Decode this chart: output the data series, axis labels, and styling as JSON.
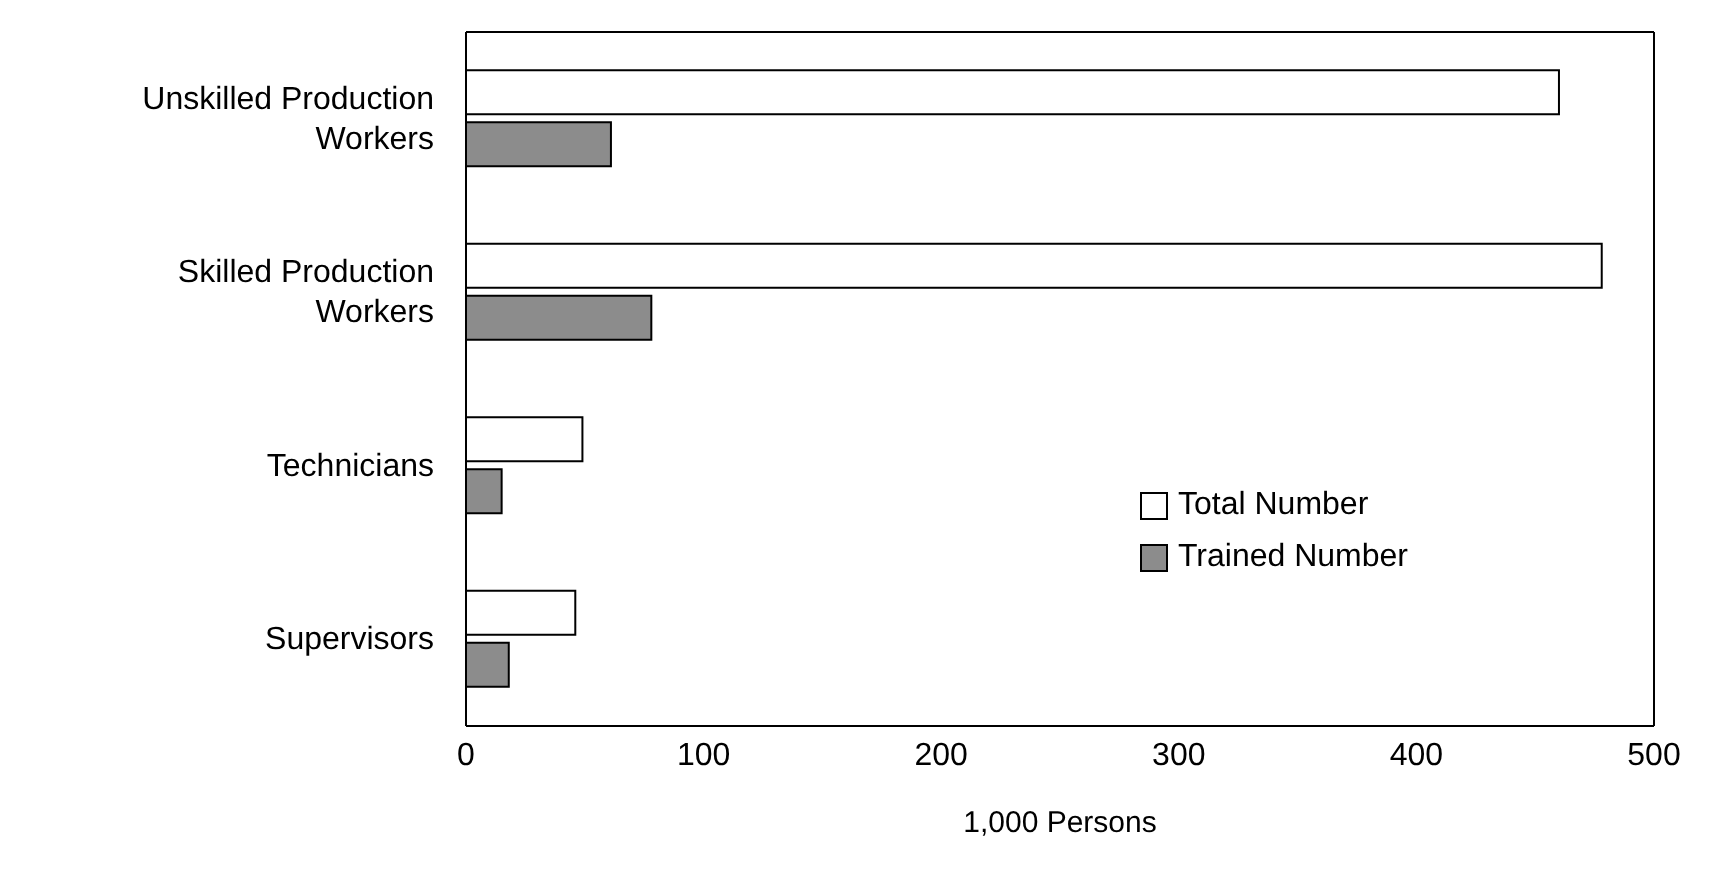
{
  "chart_data": {
    "type": "bar",
    "orientation": "horizontal",
    "categories": [
      "Unskilled Production Workers",
      "Skilled Production Workers",
      "Technicians",
      "Supervisors"
    ],
    "series": [
      {
        "name": "Total Number",
        "color": "#ffffff",
        "values": [
          460,
          478,
          49,
          46
        ]
      },
      {
        "name": "Trained Number",
        "color": "#8c8c8c",
        "values": [
          61,
          78,
          15,
          18
        ]
      }
    ],
    "xlabel": "1,000 Persons",
    "xlim": [
      0,
      500
    ],
    "xticks": [
      0,
      100,
      200,
      300,
      400,
      500
    ],
    "legend": "right"
  }
}
